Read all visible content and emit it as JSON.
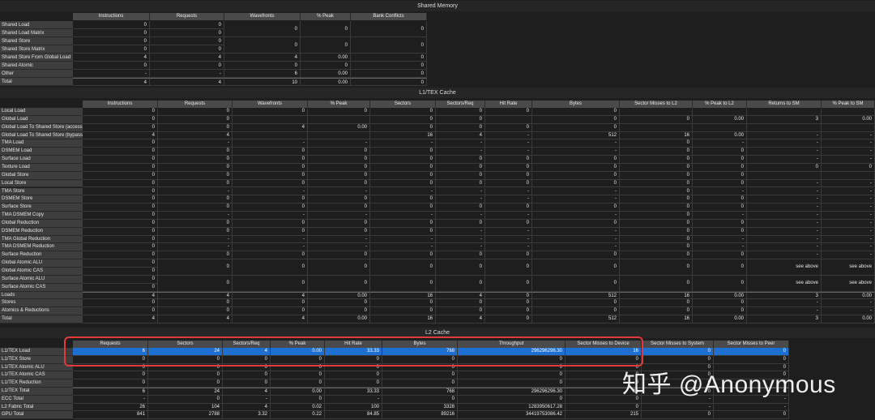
{
  "shared_memory": {
    "title": "Shared Memory",
    "columns": [
      "Instructions",
      "Requests",
      "Wavefronts",
      "% Peak",
      "Bank Conflicts"
    ],
    "rows": [
      {
        "label": "Shared Load",
        "cells": [
          "0",
          "0",
          "",
          "",
          ""
        ]
      },
      {
        "label": "Shared Load Matrix",
        "cells": [
          "0",
          "0",
          "0",
          "0",
          "0"
        ]
      },
      {
        "label": "Shared Store",
        "cells": [
          "0",
          "0",
          "",
          "",
          ""
        ]
      },
      {
        "label": "Shared Store Matrix",
        "cells": [
          "0",
          "0",
          "0",
          "0",
          "0"
        ]
      },
      {
        "label": "Shared Store From Global Load",
        "cells": [
          "4",
          "4",
          "4",
          "0.00",
          "0"
        ]
      },
      {
        "label": "Shared Atomic",
        "cells": [
          "0",
          "0",
          "0",
          "0",
          "0"
        ]
      },
      {
        "label": "Other",
        "cells": [
          "-",
          "-",
          "6",
          "0.00",
          "0"
        ]
      },
      {
        "label": "Total",
        "cells": [
          "4",
          "4",
          "10",
          "0.00",
          "0"
        ]
      }
    ]
  },
  "l1tex_cache": {
    "title": "L1/TEX Cache",
    "columns": [
      "Instructions",
      "Requests",
      "Wavefronts",
      "% Peak",
      "Sectors",
      "Sectors/Req",
      "Hit Rate",
      "Bytes",
      "Sector Misses to L2",
      "% Peak to L2",
      "Returns to SM",
      "% Peak to SM"
    ],
    "rows": [
      {
        "label": "Local Load",
        "cells": [
          "0",
          "0",
          "0",
          "0",
          "0",
          "0",
          "0",
          "0",
          "",
          "",
          "",
          ""
        ]
      },
      {
        "label": "Global Load",
        "cells": [
          "0",
          "0",
          "",
          "",
          "0",
          "0",
          "",
          "0",
          "0",
          "0.00",
          "3",
          "0.00"
        ]
      },
      {
        "label": "Global Load To Shared Store (access)",
        "cells": [
          "0",
          "0",
          "4",
          "0.00",
          "0",
          "0",
          "0",
          "0",
          "",
          "",
          "",
          ""
        ]
      },
      {
        "label": "Global Load To Shared Store (bypass)",
        "cells": [
          "4",
          "4",
          "",
          "",
          "16",
          "4",
          "-",
          "512",
          "16",
          "0.00",
          "-",
          "-"
        ]
      },
      {
        "label": "TMA Load",
        "cells": [
          "0",
          "-",
          "-",
          "-",
          "-",
          "-",
          "-",
          "-",
          "0",
          "-",
          "-",
          "-"
        ]
      },
      {
        "label": "DSMEM Load",
        "cells": [
          "0",
          "0",
          "0",
          "0",
          "0",
          "-",
          "-",
          "-",
          "0",
          "0",
          "-",
          "-"
        ]
      },
      {
        "label": "Surface Load",
        "cells": [
          "0",
          "0",
          "0",
          "0",
          "0",
          "0",
          "0",
          "0",
          "0",
          "0",
          "-",
          "-"
        ]
      },
      {
        "label": "Texture Load",
        "cells": [
          "0",
          "0",
          "0",
          "0",
          "0",
          "0",
          "0",
          "0",
          "0",
          "0",
          "0",
          "0"
        ]
      },
      {
        "label": "Global Store",
        "cells": [
          "0",
          "0",
          "0",
          "0",
          "0",
          "0",
          "0",
          "0",
          "0",
          "0",
          "",
          ""
        ]
      },
      {
        "label": "Local Store",
        "cells": [
          "0",
          "0",
          "0",
          "0",
          "0",
          "0",
          "0",
          "0",
          "0",
          "0",
          "-",
          "-"
        ]
      },
      {
        "label": "TMA Store",
        "cells": [
          "0",
          "-",
          "-",
          "-",
          "-",
          "-",
          "-",
          "-",
          "0",
          "-",
          "-",
          "-"
        ]
      },
      {
        "label": "DSMEM Store",
        "cells": [
          "0",
          "0",
          "0",
          "0",
          "0",
          "-",
          "-",
          "-",
          "0",
          "0",
          "-",
          "-"
        ]
      },
      {
        "label": "Surface Store",
        "cells": [
          "0",
          "0",
          "0",
          "0",
          "0",
          "0",
          "0",
          "0",
          "0",
          "0",
          "-",
          "-"
        ]
      },
      {
        "label": "TMA DSMEM Copy",
        "cells": [
          "0",
          "-",
          "-",
          "-",
          "-",
          "-",
          "-",
          "-",
          "0",
          "-",
          "-",
          "-"
        ]
      },
      {
        "label": "Global Reduction",
        "cells": [
          "0",
          "0",
          "0",
          "0",
          "0",
          "0",
          "0",
          "0",
          "0",
          "0",
          "-",
          "-"
        ]
      },
      {
        "label": "DSMEM Reduction",
        "cells": [
          "0",
          "0",
          "0",
          "0",
          "0",
          "-",
          "-",
          "-",
          "0",
          "0",
          "-",
          "-"
        ]
      },
      {
        "label": "TMA Global Reduction",
        "cells": [
          "0",
          "-",
          "-",
          "-",
          "-",
          "-",
          "-",
          "-",
          "0",
          "-",
          "-",
          "-"
        ]
      },
      {
        "label": "TMA DSMEM Reduction",
        "cells": [
          "0",
          "-",
          "-",
          "-",
          "-",
          "-",
          "-",
          "-",
          "0",
          "-",
          "-",
          "-"
        ]
      },
      {
        "label": "Surface Reduction",
        "cells": [
          "0",
          "0",
          "0",
          "0",
          "0",
          "0",
          "0",
          "0",
          "0",
          "0",
          "-",
          "-"
        ]
      },
      {
        "label": "Global Atomic ALU",
        "cells": [
          "0",
          "0",
          "0",
          "0",
          "0",
          "0",
          "0",
          "0",
          "0",
          "0",
          "see above",
          "see above"
        ]
      },
      {
        "label": "Global Atomic CAS",
        "cells": [
          "0",
          "",
          "",
          "",
          "",
          "",
          "",
          "",
          "",
          "",
          "",
          ""
        ]
      },
      {
        "label": "Surface Atomic ALU",
        "cells": [
          "0",
          "0",
          "0",
          "0",
          "0",
          "0",
          "0",
          "0",
          "0",
          "0",
          "see above",
          "see above"
        ]
      },
      {
        "label": "Surface Atomic CAS",
        "cells": [
          "0",
          "",
          "",
          "",
          "",
          "",
          "",
          "",
          "",
          "",
          "",
          ""
        ]
      },
      {
        "label": "Loads",
        "cells": [
          "4",
          "4",
          "4",
          "0.00",
          "16",
          "4",
          "0",
          "512",
          "16",
          "0.00",
          "3",
          "0.00"
        ]
      },
      {
        "label": "Stores",
        "cells": [
          "0",
          "0",
          "0",
          "0",
          "0",
          "0",
          "0",
          "0",
          "0",
          "0",
          "-",
          "-"
        ]
      },
      {
        "label": "Atomics & Reductions",
        "cells": [
          "0",
          "0",
          "0",
          "0",
          "0",
          "0",
          "0",
          "0",
          "0",
          "0",
          "-",
          "-"
        ]
      },
      {
        "label": "Total",
        "cells": [
          "4",
          "4",
          "4",
          "0.00",
          "16",
          "4",
          "0",
          "512",
          "16",
          "0.00",
          "3",
          "0.00"
        ]
      }
    ]
  },
  "l2_cache": {
    "title": "L2 Cache",
    "columns": [
      "Requests",
      "Sectors",
      "Sectors/Req",
      "% Peak",
      "Hit Rate",
      "Bytes",
      "Throughput",
      "Sector Misses to Device",
      "Sector Misses to System",
      "Sector Misses to Peer"
    ],
    "rows": [
      {
        "label": "L1/TEX Load",
        "cells": [
          "6",
          "24",
          "4",
          "0.00",
          "33.33",
          "768",
          "296296296.30",
          "16",
          "0",
          "0"
        ],
        "selected": true
      },
      {
        "label": "L1/TEX Store",
        "cells": [
          "0",
          "0",
          "0",
          "0",
          "0",
          "0",
          "0",
          "0",
          "0",
          "0"
        ]
      },
      {
        "label": "L1/TEX Atomic ALU",
        "cells": [
          "0",
          "0",
          "0",
          "0",
          "0",
          "0",
          "0",
          "0",
          "0",
          "0"
        ]
      },
      {
        "label": "L1/TEX Atomic CAS",
        "cells": [
          "0",
          "0",
          "0",
          "0",
          "0",
          "0",
          "0",
          "0",
          "0",
          "0"
        ]
      },
      {
        "label": "L1/TEX Reduction",
        "cells": [
          "0",
          "0",
          "0",
          "0",
          "0",
          "0",
          "0",
          "0",
          "0",
          "0"
        ]
      },
      {
        "label": "L1/TEX Total",
        "cells": [
          "6",
          "24",
          "4",
          "0.00",
          "33.33",
          "768",
          "296296296.30",
          "16",
          "0",
          "0"
        ]
      },
      {
        "label": "ECC Total",
        "cells": [
          "-",
          "0",
          "-",
          "0",
          "-",
          "0",
          "0",
          "0",
          "-",
          "-"
        ]
      },
      {
        "label": "L2 Fabric Total",
        "cells": [
          "26",
          "104",
          "4",
          "0.02",
          "100",
          "3328",
          "1283950617.28",
          "0",
          "-",
          "-"
        ]
      },
      {
        "label": "GPU Total",
        "cells": [
          "841",
          "2788",
          "3.32",
          "0.22",
          "84.85",
          "89216",
          "34419753086.42",
          "215",
          "0",
          "0"
        ]
      }
    ]
  },
  "watermark": "知乎 @Anonymous"
}
